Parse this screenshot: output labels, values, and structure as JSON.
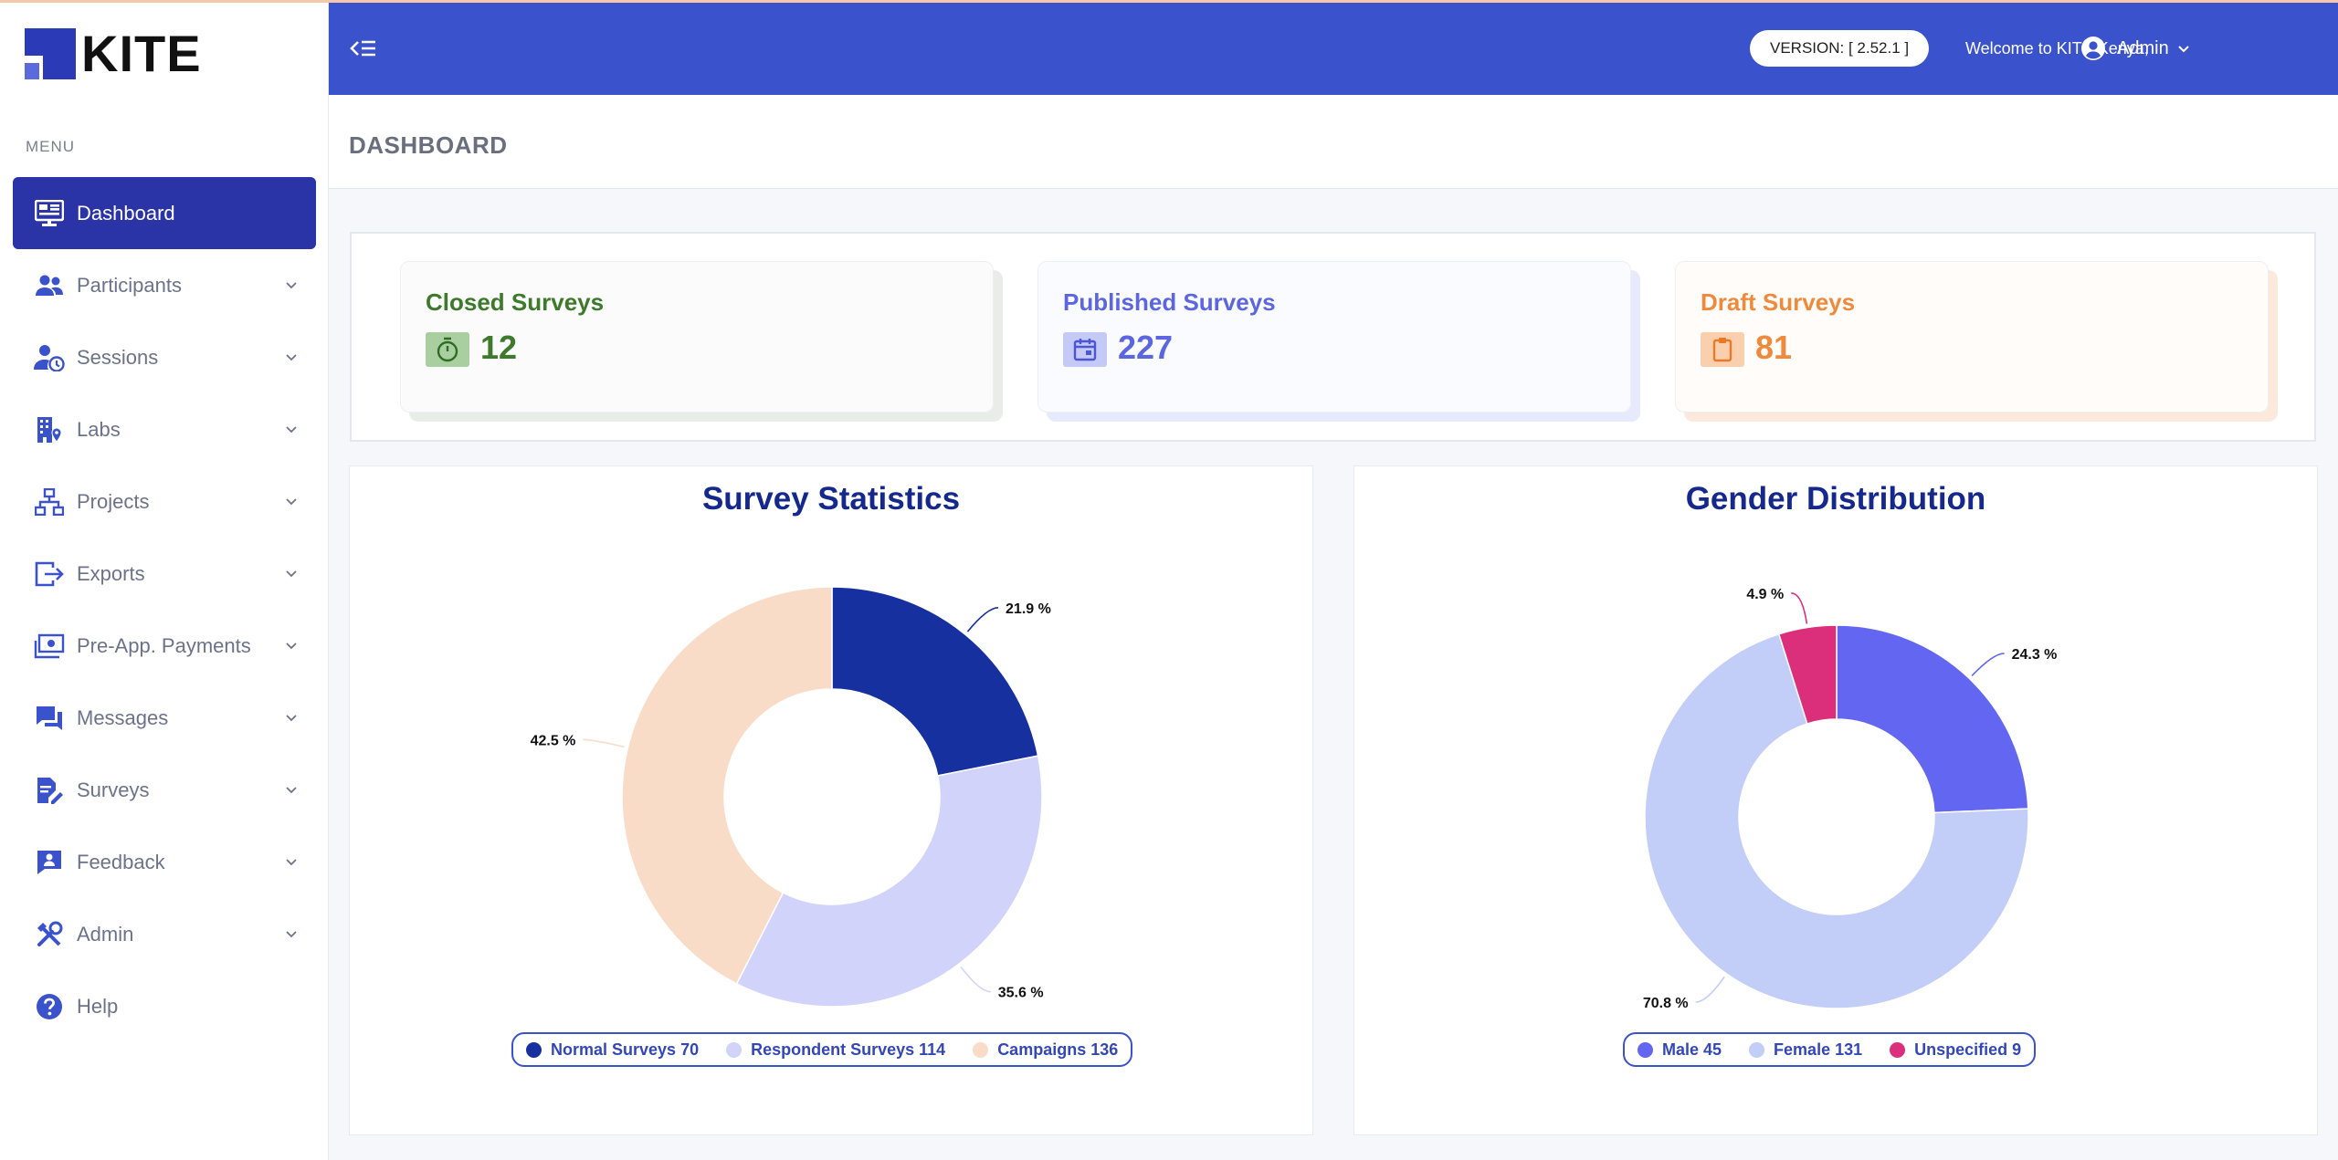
{
  "app": {
    "logo_text": "KITE"
  },
  "sidebar": {
    "menu_label": "MENU",
    "items": [
      {
        "label": "Dashboard",
        "icon": "monitor-dashboard-icon",
        "active": true
      },
      {
        "label": "Participants",
        "icon": "people-icon"
      },
      {
        "label": "Sessions",
        "icon": "user-clock-icon"
      },
      {
        "label": "Labs",
        "icon": "building-location-icon"
      },
      {
        "label": "Projects",
        "icon": "network-sitemap-icon"
      },
      {
        "label": "Exports",
        "icon": "export-icon"
      },
      {
        "label": "Pre-App. Payments",
        "icon": "money-icon"
      },
      {
        "label": "Messages",
        "icon": "chat-bubbles-icon"
      },
      {
        "label": "Surveys",
        "icon": "edit-document-icon"
      },
      {
        "label": "Feedback",
        "icon": "feedback-person-icon"
      },
      {
        "label": "Admin",
        "icon": "tools-icon"
      },
      {
        "label": "Help",
        "icon": "help-circle-icon"
      }
    ]
  },
  "header": {
    "version": "VERSION: [ 2.52.1 ]",
    "welcome": "Welcome to KITE Kenya,",
    "user": "Admin"
  },
  "page": {
    "title": "DASHBOARD"
  },
  "stats": [
    {
      "title": "Closed Surveys",
      "value": "12",
      "icon": "timer-icon",
      "color": "#3d7a2b"
    },
    {
      "title": "Published Surveys",
      "value": "227",
      "icon": "calendar-icon",
      "color": "#5c66e0"
    },
    {
      "title": "Draft Surveys",
      "value": "81",
      "icon": "clipboard-icon",
      "color": "#ef8a3c"
    }
  ],
  "chart_data": [
    {
      "type": "pie",
      "title": "Survey Statistics",
      "labels": [
        "Normal Surveys",
        "Respondent Surveys",
        "Campaigns"
      ],
      "values": [
        70,
        114,
        136
      ],
      "percent_labels": [
        "21.9 %",
        "35.6 %",
        "42.5 %"
      ],
      "colors": [
        "#1730a0",
        "#d1d3fa",
        "#f9dcc8"
      ],
      "legend": [
        "Normal Surveys 70",
        "Respondent Surveys 114",
        "Campaigns 136"
      ],
      "legend_position": "bottom"
    },
    {
      "type": "pie",
      "title": "Gender Distribution",
      "labels": [
        "Male",
        "Female",
        "Unspecified"
      ],
      "values": [
        45,
        131,
        9
      ],
      "percent_labels": [
        "24.3 %",
        "70.8 %",
        "4.9 %"
      ],
      "colors": [
        "#6366f1",
        "#c2cdf8",
        "#db2f7c"
      ],
      "legend": [
        "Male 45",
        "Female 131",
        "Unspecified 9"
      ],
      "legend_position": "bottom"
    }
  ]
}
